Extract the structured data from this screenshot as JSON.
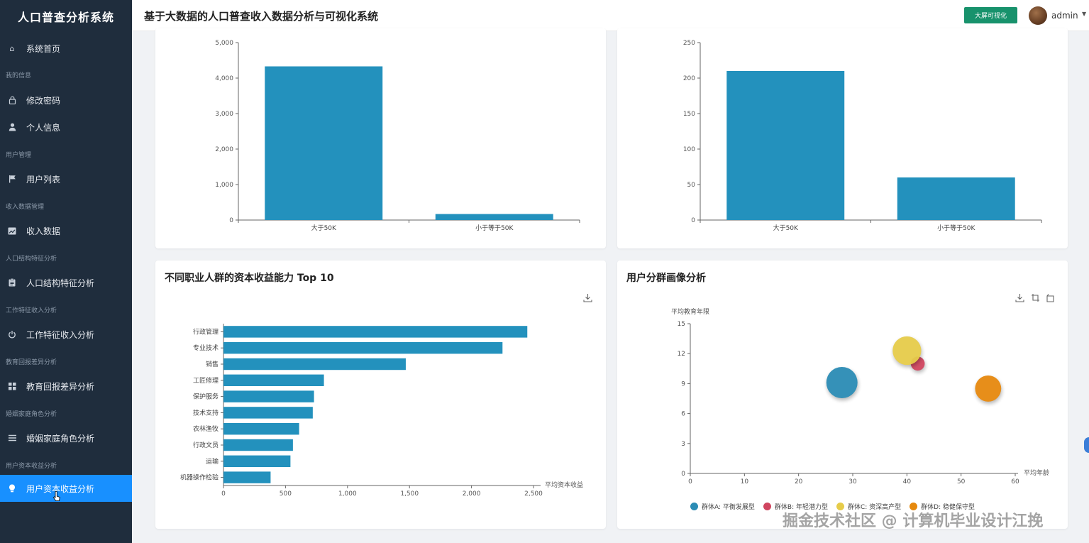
{
  "app": {
    "title": "人口普查分析系统"
  },
  "header": {
    "title": "基于大数据的人口普查收入数据分析与可视化系统",
    "bigscreen_label": "大屏可视化",
    "user": "admin"
  },
  "sidebar": {
    "home": "系统首页",
    "group_my": "我的信息",
    "change_pwd": "修改密码",
    "profile": "个人信息",
    "group_users": "用户管理",
    "user_list": "用户列表",
    "group_income": "收入数据管理",
    "income_data": "收入数据",
    "group_pop": "人口结构特征分析",
    "pop_analysis": "人口结构特征分析",
    "group_work": "工作特征收入分析",
    "work_analysis": "工作特征收入分析",
    "group_edu": "教育回报差异分析",
    "edu_analysis": "教育回报差异分析",
    "group_marriage": "婚姻家庭角色分析",
    "marriage_analysis": "婚姻家庭角色分析",
    "group_capital": "用户资本收益分析",
    "capital_analysis": "用户资本收益分析"
  },
  "cards": {
    "card3_title": "不同职业人群的资本收益能力 Top 10",
    "card4_title": "用户分群画像分析"
  },
  "icons": {
    "download": "download-icon",
    "zoom": "data-zoom-icon",
    "restore": "restore-icon"
  },
  "watermark": "掘金技术社区 @ 计算机毕业设计江挽",
  "colors": {
    "bar": "#2391bd",
    "sidebar": "#1f2d3d",
    "active": "#1890ff",
    "accent": "#18926c"
  },
  "chart_data": [
    {
      "type": "bar",
      "categories": [
        "大于50K",
        "小于等于50K"
      ],
      "values": [
        4330,
        170
      ],
      "ylim": [
        0,
        5000
      ],
      "yticks": [
        "0",
        "1,000",
        "2,000",
        "3,000",
        "4,000",
        "5,000"
      ]
    },
    {
      "type": "bar",
      "categories": [
        "大于50K",
        "小于等于50K"
      ],
      "values": [
        210,
        60
      ],
      "ylim": [
        0,
        250
      ],
      "yticks": [
        "0",
        "50",
        "100",
        "150",
        "200",
        "250"
      ]
    },
    {
      "type": "bar",
      "orientation": "horizontal",
      "title": "不同职业人群的资本收益能力 Top 10",
      "categories": [
        "行政管理",
        "专业技术",
        "销售",
        "工匠修理",
        "保护服务",
        "技术支持",
        "农林渔牧",
        "行政文员",
        "运输",
        "机器操作检验"
      ],
      "values": [
        2450,
        2250,
        1470,
        810,
        730,
        720,
        610,
        560,
        540,
        380
      ],
      "xlabel": "平均资本收益",
      "xlim": [
        0,
        2500
      ],
      "xticks": [
        "0",
        "500",
        "1,000",
        "1,500",
        "2,000",
        "2,500"
      ]
    },
    {
      "type": "scatter",
      "title": "用户分群画像分析",
      "xlabel": "平均年龄",
      "ylabel": "平均教育年限",
      "xlim": [
        0,
        60
      ],
      "ylim": [
        0,
        15
      ],
      "xticks": [
        "0",
        "10",
        "20",
        "30",
        "40",
        "50",
        "60"
      ],
      "yticks": [
        "0",
        "3",
        "6",
        "9",
        "12",
        "15"
      ],
      "series": [
        {
          "name": "群体A: 平衡发展型",
          "x": 28,
          "y": 9.1,
          "size": 5,
          "color": "#2b8cb5"
        },
        {
          "name": "群体B: 年轻潜力型",
          "x": 42,
          "y": 11.0,
          "size": 1,
          "color": "#d0455f"
        },
        {
          "name": "群体C: 资深高产型",
          "x": 40,
          "y": 12.3,
          "size": 4.2,
          "color": "#e6cc4a"
        },
        {
          "name": "群体D: 稳健保守型",
          "x": 55,
          "y": 8.5,
          "size": 3.5,
          "color": "#e6890e"
        }
      ]
    }
  ]
}
